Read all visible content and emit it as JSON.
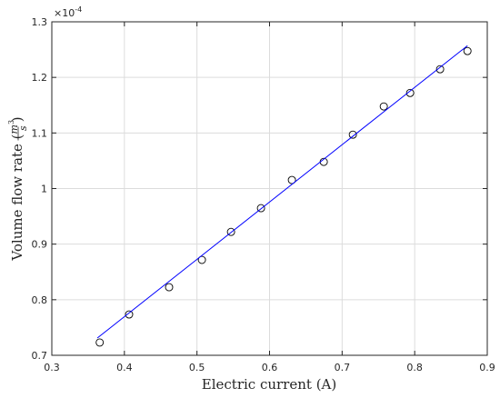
{
  "chart_data": {
    "type": "scatter",
    "xlabel": "Electric current (A)",
    "ylabel": {
      "prefix": "Volume flow rate (",
      "num": "m",
      "num_exp": "3",
      "den": "s",
      "suffix": ")"
    },
    "y_multiplier": {
      "base": "×10",
      "exponent": "-4"
    },
    "xlim": [
      0.3,
      0.9
    ],
    "ylim": [
      0.7,
      1.3
    ],
    "xticks": [
      0.3,
      0.4,
      0.5,
      0.6,
      0.7,
      0.8,
      0.9
    ],
    "yticks": [
      0.7,
      0.8,
      0.9,
      1,
      1.1,
      1.2,
      1.3
    ],
    "grid": true,
    "series": [
      {
        "style": "marker",
        "color": "#000000",
        "x": [
          0.366,
          0.4065,
          0.4616,
          0.5068,
          0.5469,
          0.5882,
          0.6308,
          0.6747,
          0.7148,
          0.7574,
          0.7937,
          0.835,
          0.8727
        ],
        "values": [
          0.723,
          0.7735,
          0.8225,
          0.8716,
          0.922,
          0.9647,
          1.0154,
          1.048,
          1.097,
          1.1477,
          1.172,
          1.2147,
          1.2474
        ]
      },
      {
        "style": "line",
        "color": "#0000ff",
        "x": [
          0.3627,
          0.8727
        ],
        "values": [
          0.731,
          1.257
        ]
      }
    ]
  }
}
